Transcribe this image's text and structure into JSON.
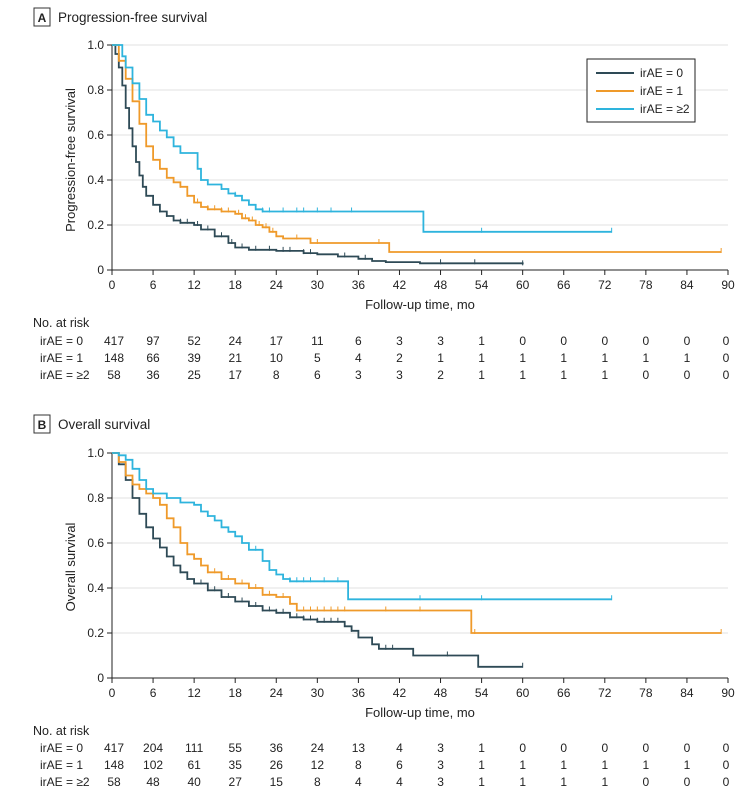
{
  "chart_data": [
    {
      "type": "line",
      "subtype": "kaplan-meier",
      "panel_letter": "A",
      "title": "Progression-free survival",
      "ylabel": "Progression-free survival",
      "xlabel": "Follow-up time, mo",
      "xlim": [
        0,
        90
      ],
      "ylim": [
        0,
        1.0
      ],
      "x_ticks": [
        0,
        6,
        12,
        18,
        24,
        30,
        36,
        42,
        48,
        54,
        60,
        66,
        72,
        78,
        84,
        90
      ],
      "y_ticks": [
        0,
        0.2,
        0.4,
        0.6,
        0.8,
        1.0
      ],
      "y_tick_labels": [
        "0",
        "0.2",
        "0.4",
        "0.6",
        "0.8",
        "1.0"
      ],
      "grid": true,
      "legend": {
        "placement": "top-right",
        "entries": [
          {
            "label": "irAE = 0",
            "color": "#2e4a56"
          },
          {
            "label": "irAE = 1",
            "color": "#ef9a2a"
          },
          {
            "label": "irAE = ≥2",
            "color": "#2eb4dd"
          }
        ]
      },
      "series": [
        {
          "name": "irAE = 0",
          "color": "#2e4a56",
          "points": [
            [
              0,
              1.0
            ],
            [
              0.5,
              0.96
            ],
            [
              1,
              0.9
            ],
            [
              1.5,
              0.82
            ],
            [
              2,
              0.72
            ],
            [
              2.5,
              0.63
            ],
            [
              3,
              0.55
            ],
            [
              3.5,
              0.48
            ],
            [
              4,
              0.42
            ],
            [
              4.5,
              0.37
            ],
            [
              5,
              0.33
            ],
            [
              6,
              0.29
            ],
            [
              7,
              0.26
            ],
            [
              8,
              0.24
            ],
            [
              9,
              0.22
            ],
            [
              10,
              0.21
            ],
            [
              12,
              0.2
            ],
            [
              13,
              0.18
            ],
            [
              15,
              0.15
            ],
            [
              17,
              0.12
            ],
            [
              18,
              0.1
            ],
            [
              20,
              0.09
            ],
            [
              24,
              0.085
            ],
            [
              28,
              0.075
            ],
            [
              30,
              0.07
            ],
            [
              33,
              0.06
            ],
            [
              36,
              0.05
            ],
            [
              38,
              0.04
            ],
            [
              40,
              0.035
            ],
            [
              45,
              0.03
            ],
            [
              50,
              0.03
            ],
            [
              60,
              0.025
            ]
          ],
          "censor_x": [
            7,
            8,
            9,
            10,
            11,
            12.5,
            14,
            15,
            16,
            17.5,
            19,
            21,
            23,
            25,
            26,
            28,
            29,
            34,
            37,
            48,
            53,
            60
          ]
        },
        {
          "name": "irAE = 1",
          "color": "#ef9a2a",
          "points": [
            [
              0,
              1.0
            ],
            [
              1,
              0.93
            ],
            [
              2,
              0.85
            ],
            [
              3,
              0.75
            ],
            [
              4,
              0.65
            ],
            [
              5,
              0.55
            ],
            [
              6,
              0.49
            ],
            [
              7,
              0.45
            ],
            [
              8,
              0.41
            ],
            [
              9,
              0.39
            ],
            [
              10,
              0.37
            ],
            [
              11,
              0.33
            ],
            [
              12,
              0.3
            ],
            [
              13,
              0.28
            ],
            [
              14,
              0.27
            ],
            [
              16,
              0.26
            ],
            [
              18,
              0.25
            ],
            [
              19,
              0.23
            ],
            [
              20,
              0.22
            ],
            [
              21,
              0.2
            ],
            [
              22,
              0.19
            ],
            [
              23,
              0.17
            ],
            [
              24,
              0.15
            ],
            [
              25,
              0.14
            ],
            [
              28,
              0.14
            ],
            [
              29,
              0.12
            ],
            [
              40,
              0.12
            ],
            [
              40.5,
              0.08
            ],
            [
              89,
              0.08
            ]
          ],
          "censor_x": [
            10,
            11,
            12.5,
            14,
            15,
            16,
            17,
            18.5,
            19.5,
            20.5,
            21.5,
            22.5,
            23.5,
            27,
            30,
            39,
            89
          ]
        },
        {
          "name": "irAE = ≥2",
          "color": "#2eb4dd",
          "points": [
            [
              0,
              1.0
            ],
            [
              1,
              1.0
            ],
            [
              1.5,
              0.95
            ],
            [
              2,
              0.9
            ],
            [
              3,
              0.83
            ],
            [
              4,
              0.76
            ],
            [
              5,
              0.69
            ],
            [
              6,
              0.66
            ],
            [
              7,
              0.62
            ],
            [
              8,
              0.59
            ],
            [
              9,
              0.55
            ],
            [
              10,
              0.52
            ],
            [
              12,
              0.52
            ],
            [
              12.5,
              0.45
            ],
            [
              13,
              0.4
            ],
            [
              14,
              0.38
            ],
            [
              16,
              0.36
            ],
            [
              17,
              0.34
            ],
            [
              18,
              0.33
            ],
            [
              19,
              0.31
            ],
            [
              20,
              0.29
            ],
            [
              21,
              0.27
            ],
            [
              22,
              0.26
            ],
            [
              24,
              0.26
            ],
            [
              45,
              0.26
            ],
            [
              45.5,
              0.17
            ],
            [
              73,
              0.17
            ]
          ],
          "censor_x": [
            13,
            16,
            18,
            22,
            23,
            25,
            27,
            28,
            30,
            32,
            35,
            54,
            73
          ]
        }
      ],
      "risk_table": {
        "header": "No. at risk",
        "rows": [
          {
            "label": "irAE = 0",
            "values": [
              "417",
              "97",
              "52",
              "24",
              "17",
              "11",
              "6",
              "3",
              "3",
              "1",
              "0",
              "0",
              "0",
              "0",
              "0",
              "0"
            ]
          },
          {
            "label": "irAE = 1",
            "values": [
              "148",
              "66",
              "39",
              "21",
              "10",
              "5",
              "4",
              "2",
              "1",
              "1",
              "1",
              "1",
              "1",
              "1",
              "1",
              "0"
            ]
          },
          {
            "label": "irAE = ≥2",
            "values": [
              "58",
              "36",
              "25",
              "17",
              "8",
              "6",
              "3",
              "3",
              "2",
              "1",
              "1",
              "1",
              "1",
              "0",
              "0",
              "0"
            ]
          }
        ]
      }
    },
    {
      "type": "line",
      "subtype": "kaplan-meier",
      "panel_letter": "B",
      "title": "Overall survival",
      "ylabel": "Overall survival",
      "xlabel": "Follow-up time, mo",
      "xlim": [
        0,
        90
      ],
      "ylim": [
        0,
        1.0
      ],
      "x_ticks": [
        0,
        6,
        12,
        18,
        24,
        30,
        36,
        42,
        48,
        54,
        60,
        66,
        72,
        78,
        84,
        90
      ],
      "y_ticks": [
        0,
        0.2,
        0.4,
        0.6,
        0.8,
        1.0
      ],
      "y_tick_labels": [
        "0",
        "0.2",
        "0.4",
        "0.6",
        "0.8",
        "1.0"
      ],
      "grid": true,
      "series": [
        {
          "name": "irAE = 0",
          "color": "#2e4a56",
          "points": [
            [
              0,
              1.0
            ],
            [
              1,
              0.95
            ],
            [
              2,
              0.88
            ],
            [
              3,
              0.8
            ],
            [
              4,
              0.73
            ],
            [
              5,
              0.67
            ],
            [
              6,
              0.62
            ],
            [
              7,
              0.58
            ],
            [
              8,
              0.54
            ],
            [
              9,
              0.5
            ],
            [
              10,
              0.47
            ],
            [
              11,
              0.44
            ],
            [
              12,
              0.42
            ],
            [
              14,
              0.39
            ],
            [
              16,
              0.36
            ],
            [
              18,
              0.34
            ],
            [
              20,
              0.32
            ],
            [
              22,
              0.3
            ],
            [
              24,
              0.29
            ],
            [
              26,
              0.27
            ],
            [
              28,
              0.26
            ],
            [
              30,
              0.25
            ],
            [
              32,
              0.25
            ],
            [
              34,
              0.23
            ],
            [
              35,
              0.21
            ],
            [
              36,
              0.18
            ],
            [
              38,
              0.15
            ],
            [
              39,
              0.13
            ],
            [
              40,
              0.13
            ],
            [
              42,
              0.13
            ],
            [
              44,
              0.1
            ],
            [
              48,
              0.1
            ],
            [
              53,
              0.1
            ],
            [
              53.5,
              0.05
            ],
            [
              60,
              0.05
            ]
          ],
          "censor_x": [
            10,
            11,
            12,
            13,
            14,
            15,
            16,
            17,
            18,
            19,
            20,
            21,
            22,
            23,
            24,
            25,
            26,
            27,
            28,
            29,
            30,
            31,
            32,
            33,
            35,
            40,
            41,
            49,
            60
          ]
        },
        {
          "name": "irAE = 1",
          "color": "#ef9a2a",
          "points": [
            [
              0,
              1.0
            ],
            [
              1,
              0.96
            ],
            [
              2,
              0.9
            ],
            [
              3,
              0.86
            ],
            [
              4,
              0.84
            ],
            [
              5,
              0.82
            ],
            [
              6,
              0.8
            ],
            [
              7,
              0.77
            ],
            [
              8,
              0.71
            ],
            [
              9,
              0.67
            ],
            [
              10,
              0.6
            ],
            [
              11,
              0.55
            ],
            [
              12,
              0.53
            ],
            [
              13,
              0.5
            ],
            [
              14,
              0.47
            ],
            [
              16,
              0.44
            ],
            [
              18,
              0.42
            ],
            [
              20,
              0.4
            ],
            [
              22,
              0.37
            ],
            [
              24,
              0.36
            ],
            [
              26,
              0.33
            ],
            [
              27,
              0.3
            ],
            [
              52,
              0.3
            ],
            [
              52.5,
              0.2
            ],
            [
              89,
              0.2
            ]
          ],
          "censor_x": [
            11,
            12,
            13,
            14,
            15,
            16,
            17,
            18,
            19,
            20,
            21,
            22,
            23,
            25,
            26,
            27,
            28,
            29,
            30,
            31,
            32,
            33,
            34,
            40,
            45,
            53,
            89
          ]
        },
        {
          "name": "irAE = ≥2",
          "color": "#2eb4dd",
          "points": [
            [
              0,
              1.0
            ],
            [
              1,
              0.99
            ],
            [
              2,
              0.97
            ],
            [
              3,
              0.93
            ],
            [
              4,
              0.88
            ],
            [
              5,
              0.84
            ],
            [
              6,
              0.82
            ],
            [
              8,
              0.8
            ],
            [
              10,
              0.78
            ],
            [
              12,
              0.77
            ],
            [
              13,
              0.74
            ],
            [
              14,
              0.72
            ],
            [
              15,
              0.7
            ],
            [
              16,
              0.67
            ],
            [
              17,
              0.65
            ],
            [
              18,
              0.63
            ],
            [
              19,
              0.6
            ],
            [
              20,
              0.57
            ],
            [
              21,
              0.57
            ],
            [
              22,
              0.52
            ],
            [
              23,
              0.48
            ],
            [
              24,
              0.46
            ],
            [
              25,
              0.44
            ],
            [
              26,
              0.43
            ],
            [
              34,
              0.43
            ],
            [
              34.5,
              0.35
            ],
            [
              73,
              0.35
            ]
          ],
          "censor_x": [
            8,
            14,
            21,
            23,
            26,
            27,
            28,
            29,
            31,
            33,
            45,
            54,
            73
          ]
        }
      ],
      "risk_table": {
        "header": "No. at risk",
        "rows": [
          {
            "label": "irAE = 0",
            "values": [
              "417",
              "204",
              "111",
              "55",
              "36",
              "24",
              "13",
              "4",
              "3",
              "1",
              "0",
              "0",
              "0",
              "0",
              "0",
              "0"
            ]
          },
          {
            "label": "irAE = 1",
            "values": [
              "148",
              "102",
              "61",
              "35",
              "26",
              "12",
              "8",
              "6",
              "3",
              "1",
              "1",
              "1",
              "1",
              "1",
              "1",
              "0"
            ]
          },
          {
            "label": "irAE = ≥2",
            "values": [
              "58",
              "48",
              "40",
              "27",
              "15",
              "8",
              "4",
              "4",
              "3",
              "1",
              "1",
              "1",
              "1",
              "0",
              "0",
              "0"
            ]
          }
        ]
      }
    }
  ]
}
